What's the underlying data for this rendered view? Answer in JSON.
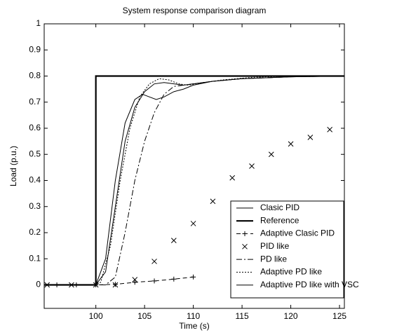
{
  "chart_data": {
    "type": "line",
    "title": "System response comparison diagram",
    "xlabel": "Time (s)",
    "ylabel": "Load (p.u.)",
    "xlim": [
      94.7,
      125.5
    ],
    "ylim": [
      -0.09,
      1
    ],
    "xticks": [
      100,
      105,
      110,
      115,
      120,
      125
    ],
    "yticks": [
      0,
      0.1,
      0.2,
      0.3,
      0.4,
      0.5,
      0.6,
      0.7,
      0.8,
      0.9,
      1
    ],
    "legend": "lower right",
    "series": [
      {
        "name": "Clasic PID",
        "color": "#000000",
        "line_style": "solid",
        "line_width": 1,
        "x": [
          94.7,
          100,
          101,
          102,
          103,
          104,
          104.8,
          105.5,
          106.2,
          107,
          108,
          109,
          110,
          112,
          115,
          120,
          125.5
        ],
        "values": [
          0,
          0,
          0.1,
          0.4,
          0.62,
          0.71,
          0.73,
          0.72,
          0.71,
          0.72,
          0.74,
          0.75,
          0.765,
          0.78,
          0.79,
          0.797,
          0.8
        ]
      },
      {
        "name": "Reference",
        "color": "#000000",
        "line_style": "solid",
        "line_width": 2.2,
        "x": [
          94.7,
          100,
          100,
          125.5
        ],
        "values": [
          0,
          0,
          0.8,
          0.8
        ]
      },
      {
        "name": "Adaptive Clasic PID",
        "color": "#000000",
        "line_style": "dashed",
        "line_width": 1,
        "marker": "+",
        "x": [
          96,
          98,
          100,
          102,
          104,
          106,
          108,
          110
        ],
        "values": [
          0,
          0,
          0,
          0.002,
          0.01,
          0.015,
          0.022,
          0.03
        ]
      },
      {
        "name": "PID like",
        "color": "#000000",
        "line_style": "none",
        "marker": "x",
        "x": [
          95,
          97.5,
          100,
          102,
          104,
          106,
          108,
          110,
          112,
          114,
          116,
          118,
          120,
          122,
          124
        ],
        "values": [
          0,
          0,
          0,
          0,
          0.02,
          0.09,
          0.17,
          0.235,
          0.32,
          0.41,
          0.455,
          0.5,
          0.54,
          0.565,
          0.595
        ]
      },
      {
        "name": "PD like",
        "color": "#000000",
        "line_style": "dashdot",
        "line_width": 1,
        "x": [
          94.7,
          100,
          101,
          102,
          103,
          104,
          105,
          106,
          107,
          108,
          109,
          110,
          112,
          115,
          120,
          125.5
        ],
        "values": [
          0,
          0,
          0,
          0.03,
          0.2,
          0.4,
          0.55,
          0.66,
          0.73,
          0.76,
          0.765,
          0.77,
          0.78,
          0.79,
          0.797,
          0.8
        ]
      },
      {
        "name": "Adaptive PD like",
        "color": "#000000",
        "line_style": "dotted",
        "line_width": 1,
        "x": [
          94.7,
          100,
          100.5,
          101.5,
          102.5,
          103.5,
          104.5,
          105.5,
          106.5,
          107.5,
          108.5,
          109.5,
          111,
          113,
          116,
          120,
          125.5
        ],
        "values": [
          0,
          0,
          0.01,
          0.15,
          0.4,
          0.6,
          0.72,
          0.77,
          0.79,
          0.785,
          0.77,
          0.765,
          0.775,
          0.785,
          0.795,
          0.8,
          0.8
        ]
      },
      {
        "name": "Adaptive PD like with VSC",
        "color": "#000000",
        "line_style": "solid",
        "line_width": 1,
        "x": [
          94.7,
          100,
          101,
          102,
          103,
          104,
          105,
          106,
          107,
          108,
          109,
          110,
          112,
          115,
          120,
          125.5
        ],
        "values": [
          0,
          0,
          0.05,
          0.3,
          0.55,
          0.68,
          0.74,
          0.77,
          0.775,
          0.77,
          0.765,
          0.77,
          0.78,
          0.79,
          0.797,
          0.8
        ]
      }
    ]
  }
}
